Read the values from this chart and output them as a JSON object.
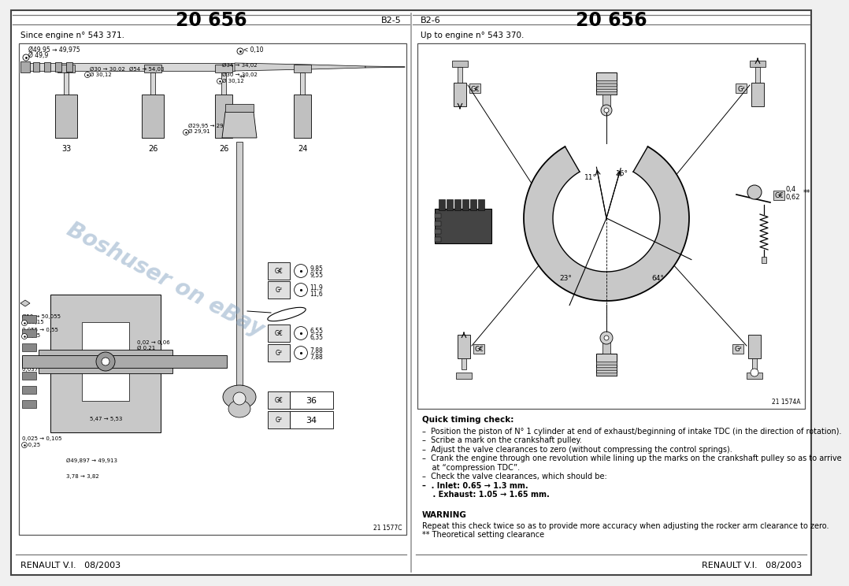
{
  "bg_color": "#f0f0f0",
  "page_bg": "#ffffff",
  "title": "20 656",
  "left_page": {
    "page_num": "B2-5",
    "subtitle": "Since engine n° 543 371.",
    "footer": "RENAULT V.I.   08/2003",
    "diagram_ref": "21 1577C"
  },
  "right_page": {
    "page_num": "B2-6",
    "subtitle": "Up to engine n° 543 370.",
    "footer": "RENAULT V.I.   08/2003",
    "diagram_ref": "21 1574A",
    "angle1": "11°",
    "angle2": "16°",
    "angle3": "23°",
    "angle4": "64°",
    "clearance1": "0,4",
    "clearance2": "0,62",
    "double_star": "**",
    "quick_timing_check_title": "Quick timing check:",
    "bullet_lines": [
      "–  Position the piston of N° 1 cylinder at end of exhaust/beginning of intake TDC (in the direction of rotation).",
      "–  Scribe a mark on the crankshaft pulley.",
      "–  Adjust the valve clearances to zero (without compressing the control springs).",
      "–  Crank the engine through one revolution while lining up the marks on the crankshaft pulley so as to arrive",
      "    at “compression TDC”.",
      "–  Check the valve clearances, which should be:",
      "–  . Inlet: 0.65 → 1.3 mm.",
      "    . Exhaust: 1.05 → 1.65 mm."
    ],
    "warning_title": "WARNING",
    "warning_lines": [
      "Repeat this check twice so as to provide more accuracy when adjusting the rocker arm clearance to zero.",
      "** Theoretical setting clearance"
    ]
  },
  "watermark": "Boshuser on eBay",
  "watermark_color": "#7799bb"
}
